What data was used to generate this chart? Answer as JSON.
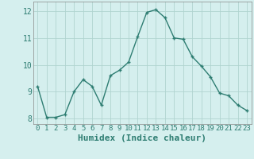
{
  "x": [
    0,
    1,
    2,
    3,
    4,
    5,
    6,
    7,
    8,
    9,
    10,
    11,
    12,
    13,
    14,
    15,
    16,
    17,
    18,
    19,
    20,
    21,
    22,
    23
  ],
  "y": [
    9.2,
    8.05,
    8.05,
    8.15,
    9.0,
    9.45,
    9.2,
    8.5,
    9.6,
    9.8,
    10.1,
    11.05,
    11.95,
    12.05,
    11.75,
    11.0,
    10.95,
    10.3,
    9.95,
    9.55,
    8.95,
    8.85,
    8.5,
    8.3
  ],
  "xlabel": "Humidex (Indice chaleur)",
  "bg_color": "#d5efee",
  "line_color": "#2e7d72",
  "marker_color": "#2e7d72",
  "grid_color": "#b0d4d0",
  "tick_label_color": "#2e7d72",
  "axis_label_color": "#2e7d72",
  "ylim": [
    7.8,
    12.35
  ],
  "xlim": [
    -0.5,
    23.5
  ],
  "yticks": [
    8,
    9,
    10,
    11,
    12
  ],
  "xticks": [
    0,
    1,
    2,
    3,
    4,
    5,
    6,
    7,
    8,
    9,
    10,
    11,
    12,
    13,
    14,
    15,
    16,
    17,
    18,
    19,
    20,
    21,
    22,
    23
  ],
  "xtick_labels": [
    "0",
    "1",
    "2",
    "3",
    "4",
    "5",
    "6",
    "7",
    "8",
    "9",
    "10",
    "11",
    "12",
    "13",
    "14",
    "15",
    "16",
    "17",
    "18",
    "19",
    "20",
    "21",
    "22",
    "23"
  ],
  "ytick_labels": [
    "8",
    "9",
    "10",
    "11",
    "12"
  ],
  "font_size": 6.5
}
